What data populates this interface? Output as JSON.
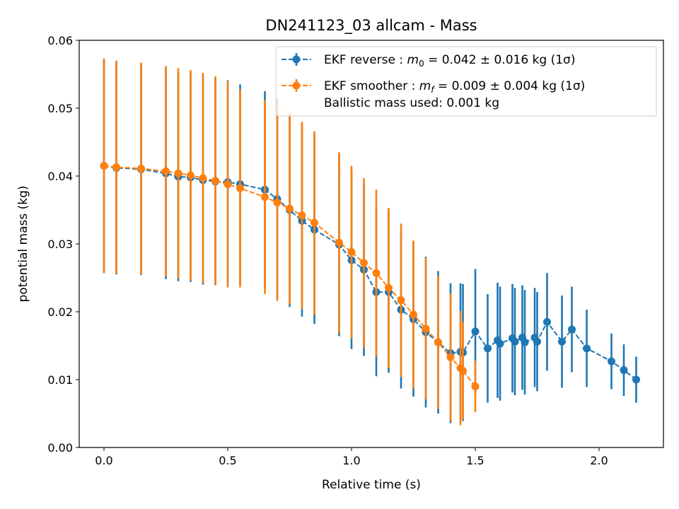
{
  "chart_data": {
    "type": "scatter",
    "title": "DN241123_03 allcam - Mass",
    "xlabel": "Relative time (s)",
    "ylabel": "potential mass (kg)",
    "xlim": [
      -0.1,
      2.26
    ],
    "ylim": [
      0.0,
      0.06
    ],
    "xticks": [
      0.0,
      0.5,
      1.0,
      1.5,
      2.0
    ],
    "xtick_labels": [
      "0.0",
      "0.5",
      "1.0",
      "1.5",
      "2.0"
    ],
    "yticks": [
      0.0,
      0.01,
      0.02,
      0.03,
      0.04,
      0.05,
      0.06
    ],
    "ytick_labels": [
      "0.00",
      "0.01",
      "0.02",
      "0.03",
      "0.04",
      "0.05",
      "0.06"
    ],
    "grid": false,
    "legend_position": "top-right",
    "legend_extra_text": "Ballistic mass used: 0.001 kg",
    "series": [
      {
        "name": "EKF reverse : m0 =  0.042 ± 0.016 kg (1σ)",
        "legend_prefix": "EKF reverse : ",
        "legend_sym": "m",
        "legend_sub": "0",
        "legend_suffix": " =  0.042 ± 0.016 kg (1σ)",
        "color": "#1f77b4",
        "x": [
          0.0,
          0.05,
          0.15,
          0.25,
          0.3,
          0.35,
          0.4,
          0.45,
          0.5,
          0.55,
          0.65,
          0.7,
          0.75,
          0.8,
          0.85,
          0.95,
          1.0,
          1.05,
          1.1,
          1.15,
          1.2,
          1.25,
          1.3,
          1.35,
          1.4,
          1.44,
          1.45,
          1.5,
          1.55,
          1.59,
          1.6,
          1.65,
          1.66,
          1.69,
          1.7,
          1.74,
          1.75,
          1.79,
          1.85,
          1.89,
          1.95,
          2.05,
          2.1,
          2.15
        ],
        "y": [
          0.0415,
          0.0412,
          0.041,
          0.0404,
          0.0399,
          0.0398,
          0.0394,
          0.0392,
          0.0391,
          0.0388,
          0.038,
          0.0366,
          0.035,
          0.0334,
          0.0321,
          0.0299,
          0.0276,
          0.0262,
          0.0229,
          0.0229,
          0.0203,
          0.0189,
          0.017,
          0.0155,
          0.0139,
          0.0141,
          0.014,
          0.0171,
          0.0146,
          0.0158,
          0.0153,
          0.0161,
          0.0156,
          0.0162,
          0.0155,
          0.0162,
          0.0156,
          0.0185,
          0.0156,
          0.0174,
          0.0146,
          0.0127,
          0.0114,
          0.01
        ],
        "err": [
          0.0158,
          0.0157,
          0.0156,
          0.0156,
          0.0154,
          0.0154,
          0.0154,
          0.0153,
          0.015,
          0.0147,
          0.0145,
          0.0148,
          0.0143,
          0.0141,
          0.0139,
          0.0135,
          0.0131,
          0.0127,
          0.0124,
          0.0119,
          0.0116,
          0.0114,
          0.0111,
          0.0105,
          0.0103,
          0.0101,
          0.0101,
          0.0092,
          0.008,
          0.0085,
          0.0084,
          0.008,
          0.0079,
          0.0077,
          0.0077,
          0.0073,
          0.0073,
          0.0072,
          0.0068,
          0.0063,
          0.0057,
          0.0041,
          0.0038,
          0.0034
        ]
      },
      {
        "name": "EKF smoother : mf =  0.009 ± 0.004 kg (1σ)",
        "legend_prefix": "EKF smoother : ",
        "legend_sym": "m",
        "legend_sub": "f",
        "legend_suffix": " =  0.009 ± 0.004 kg (1σ)",
        "color": "#ff7f0e",
        "x": [
          0.0,
          0.05,
          0.15,
          0.25,
          0.3,
          0.35,
          0.4,
          0.45,
          0.5,
          0.55,
          0.65,
          0.7,
          0.75,
          0.8,
          0.85,
          0.95,
          1.0,
          1.05,
          1.1,
          1.15,
          1.2,
          1.25,
          1.3,
          1.35,
          1.4,
          1.44,
          1.45,
          1.5
        ],
        "y": [
          0.0415,
          0.0413,
          0.0411,
          0.0407,
          0.0404,
          0.0401,
          0.0397,
          0.0393,
          0.0388,
          0.0382,
          0.0369,
          0.0361,
          0.0352,
          0.0342,
          0.0331,
          0.0302,
          0.0288,
          0.0272,
          0.0257,
          0.0235,
          0.0217,
          0.0196,
          0.0175,
          0.0155,
          0.0133,
          0.0117,
          0.0113,
          0.009
        ],
        "err": [
          0.0158,
          0.0157,
          0.0156,
          0.0155,
          0.0155,
          0.0155,
          0.0155,
          0.0154,
          0.0152,
          0.0146,
          0.0143,
          0.0145,
          0.0141,
          0.0138,
          0.0135,
          0.0133,
          0.0127,
          0.0125,
          0.0123,
          0.0118,
          0.0113,
          0.0109,
          0.0104,
          0.0098,
          0.0094,
          0.0084,
          0.0072,
          0.0038
        ]
      }
    ]
  }
}
